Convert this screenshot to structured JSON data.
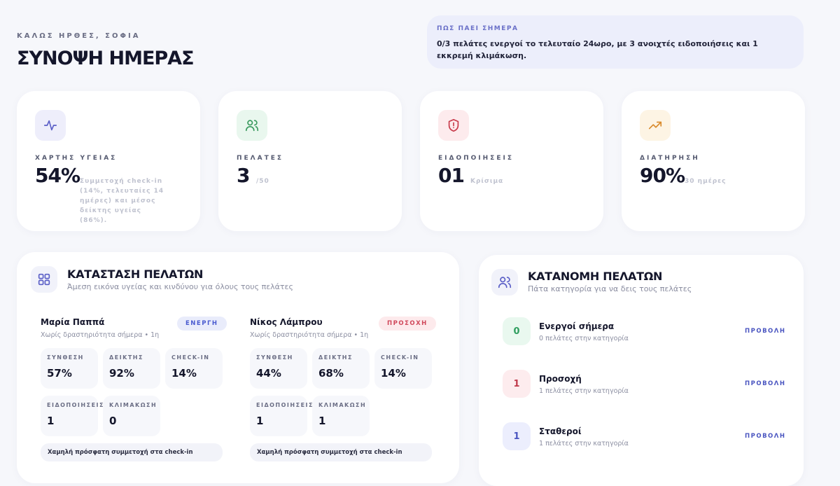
{
  "header": {
    "greeting": "ΚΑΛΩΣ ΗΡΘΕΣ, ΣΟΦΙΑ",
    "title": "ΣΥΝΟΨΗ ΗΜΕΡΑΣ"
  },
  "today": {
    "label": "ΠΩΣ ΠΑΕΙ ΣΗΜΕΡΑ",
    "text": "0/3 πελάτες ενεργοί το τελευταίο 24ωρο, με 3 ανοιχτές ειδοποιήσεις και 1 εκκρεμή κλιμάκωση."
  },
  "stats": [
    {
      "label": "ΧΑΡΤΗΣ ΥΓΕΙΑΣ",
      "value": "54%",
      "note": "Συμμετοχή check-in (14%, τελευταίες 14 ημέρες) και μέσος δείκτης υγείας (86%)."
    },
    {
      "label": "ΠΕΛΑΤΕΣ",
      "value": "3",
      "note": "/50"
    },
    {
      "label": "ΕΙΔΟΠΟΙΗΣΕΙΣ",
      "value": "01",
      "note": "Κρίσιμα"
    },
    {
      "label": "ΔΙΑΤΗΡΗΣΗ",
      "value": "90%",
      "note": "30 ημέρες"
    }
  ],
  "status": {
    "title": "ΚΑΤΑΣΤΑΣΗ ΠΕΛΑΤΩΝ",
    "subtitle": "Άμεση εικόνα υγείας και κινδύνου για όλους τους πελάτες",
    "clients": [
      {
        "name": "Μαρία Παππά",
        "activity": "Χωρίς δραστηριότητα σήμερα • 1η",
        "badge": "ΕΝΕΡΓΗ",
        "metrics": [
          {
            "label": "ΣΥΝΘΕΣΗ",
            "value": "57%"
          },
          {
            "label": "ΔΕΙΚΤΗΣ",
            "value": "92%"
          },
          {
            "label": "CHECK-IN",
            "value": "14%"
          },
          {
            "label": "ΕΙΔΟΠΟΙΗΣΕΙΣ",
            "value": "1"
          },
          {
            "label": "ΚΛΙΜΑΚΩΣΗ",
            "value": "0"
          }
        ],
        "note": "Χαμηλή πρόσφατη συμμετοχή στα check-in"
      },
      {
        "name": "Νίκος Λάμπρου",
        "activity": "Χωρίς δραστηριότητα σήμερα • 1η",
        "badge": "ΠΡΟΣΟΧΗ",
        "metrics": [
          {
            "label": "ΣΥΝΘΕΣΗ",
            "value": "44%"
          },
          {
            "label": "ΔΕΙΚΤΗΣ",
            "value": "68%"
          },
          {
            "label": "CHECK-IN",
            "value": "14%"
          },
          {
            "label": "ΕΙΔΟΠΟΙΗΣΕΙΣ",
            "value": "1"
          },
          {
            "label": "ΚΛΙΜΑΚΩΣΗ",
            "value": "1"
          }
        ],
        "note": "Χαμηλή πρόσφατη συμμετοχή στα check-in"
      }
    ]
  },
  "distribution": {
    "title": "ΚΑΤΑΝΟΜΗ ΠΕΛΑΤΩΝ",
    "subtitle": "Πάτα κατηγορία για να δεις τους πελάτες",
    "rows": [
      {
        "count": "0",
        "label": "Ενεργοί σήμερα",
        "sub": "0 πελάτες στην κατηγορία",
        "action": "ΠΡΟΒΟΛΗ"
      },
      {
        "count": "1",
        "label": "Προσοχή",
        "sub": "1 πελάτες στην κατηγορία",
        "action": "ΠΡΟΒΟΛΗ"
      },
      {
        "count": "1",
        "label": "Σταθεροί",
        "sub": "1 πελάτες στην κατηγορία",
        "action": "ΠΡΟΒΟΛΗ"
      }
    ]
  }
}
